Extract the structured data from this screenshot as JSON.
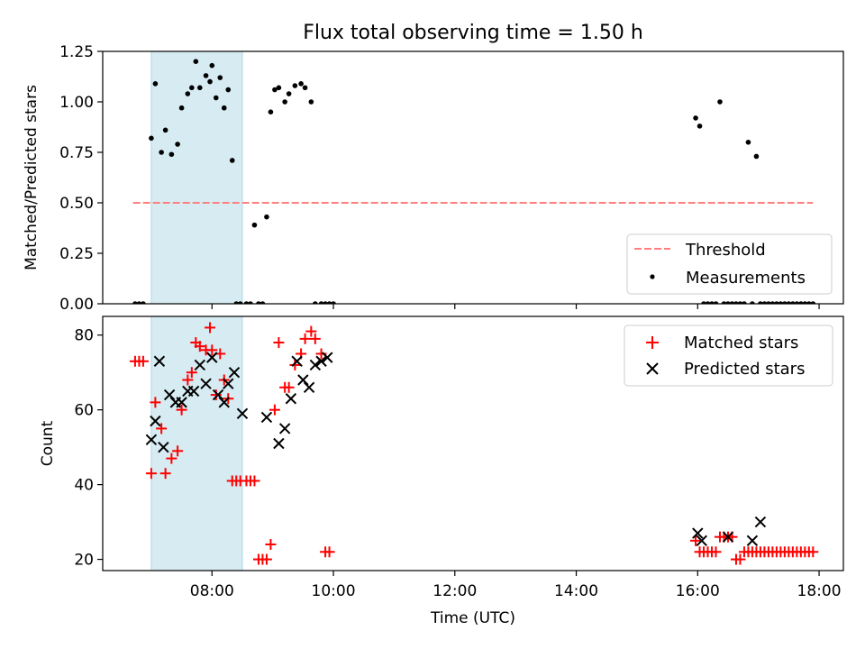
{
  "figure": {
    "title": "Flux total observing time = 1.50 h",
    "xlabel": "Time (UTC)"
  },
  "colors": {
    "band": "#add8e6",
    "threshold": "#ff7f7f",
    "measurement": "#000000",
    "matched": "#ff0000",
    "predicted": "#000000"
  },
  "chart_data": [
    {
      "type": "scatter",
      "title": "Flux total observing time = 1.50 h",
      "ylabel": "Matched/Predicted stars",
      "xlim": [
        "06:12",
        "18:24"
      ],
      "ylim": [
        0,
        1.25
      ],
      "yticks": [
        "0.00",
        "0.25",
        "0.50",
        "0.75",
        "1.00",
        "1.25"
      ],
      "shaded_interval": [
        "07:00",
        "08:30"
      ],
      "threshold": {
        "name": "Threshold",
        "y": 0.5,
        "x_range": [
          "06:42",
          "17:54"
        ]
      },
      "legend": {
        "placement": "lower-right",
        "entries": [
          "Threshold",
          "Measurements"
        ]
      },
      "series": [
        {
          "name": "Measurements",
          "marker": "dot",
          "x": [
            "06:44",
            "06:48",
            "06:52",
            "07:00",
            "07:04",
            "07:10",
            "07:14",
            "07:20",
            "07:26",
            "07:30",
            "07:36",
            "07:40",
            "07:44",
            "07:48",
            "07:54",
            "07:58",
            "08:00",
            "08:04",
            "08:08",
            "08:12",
            "08:16",
            "08:20",
            "08:24",
            "08:28",
            "08:34",
            "08:38",
            "08:42",
            "08:46",
            "08:50",
            "08:54",
            "08:58",
            "09:02",
            "09:06",
            "09:12",
            "09:16",
            "09:22",
            "09:28",
            "09:32",
            "09:38",
            "09:42",
            "09:48",
            "09:52",
            "09:56",
            "10:00",
            "15:58",
            "16:02",
            "16:06",
            "16:10",
            "16:14",
            "16:18",
            "16:22",
            "16:26",
            "16:30",
            "16:34",
            "16:38",
            "16:42",
            "16:46",
            "16:50",
            "16:54",
            "16:58",
            "17:02",
            "17:06",
            "17:10",
            "17:14",
            "17:18",
            "17:22",
            "17:26",
            "17:30",
            "17:34",
            "17:38",
            "17:42",
            "17:46",
            "17:50",
            "17:54"
          ],
          "y": [
            0,
            0,
            0,
            0.82,
            1.09,
            0.75,
            0.86,
            0.74,
            0.79,
            0.97,
            1.04,
            1.07,
            1.2,
            1.07,
            1.13,
            1.1,
            1.18,
            1.02,
            1.12,
            0.97,
            1.06,
            0.71,
            0,
            0,
            0,
            0,
            0.39,
            0,
            0,
            0.43,
            0.95,
            1.06,
            1.07,
            1.0,
            1.04,
            1.08,
            1.09,
            1.07,
            1.0,
            0,
            0,
            0,
            0,
            0,
            0.92,
            0.88,
            0,
            0,
            0,
            0,
            1.0,
            0,
            0,
            0,
            0,
            0,
            0,
            0.8,
            0,
            0.73,
            0,
            0,
            0,
            0,
            0,
            0,
            0,
            0,
            0,
            0,
            0,
            0,
            0,
            0
          ]
        }
      ]
    },
    {
      "type": "scatter",
      "ylabel": "Count",
      "xlim": [
        "06:12",
        "18:24"
      ],
      "ylim": [
        17,
        85
      ],
      "yticks": [
        "20",
        "40",
        "60",
        "80"
      ],
      "xticks": [
        "08:00",
        "10:00",
        "12:00",
        "14:00",
        "16:00",
        "18:00"
      ],
      "shaded_interval": [
        "07:00",
        "08:30"
      ],
      "legend": {
        "placement": "upper-right",
        "entries": [
          "Matched stars",
          "Predicted stars"
        ]
      },
      "series": [
        {
          "name": "Matched stars",
          "marker": "plus",
          "x": [
            "06:44",
            "06:48",
            "06:52",
            "07:00",
            "07:04",
            "07:10",
            "07:14",
            "07:20",
            "07:26",
            "07:30",
            "07:36",
            "07:40",
            "07:44",
            "07:48",
            "07:54",
            "07:58",
            "08:00",
            "08:04",
            "08:08",
            "08:12",
            "08:16",
            "08:20",
            "08:24",
            "08:28",
            "08:34",
            "08:38",
            "08:42",
            "08:46",
            "08:50",
            "08:54",
            "08:58",
            "09:02",
            "09:06",
            "09:12",
            "09:16",
            "09:22",
            "09:28",
            "09:32",
            "09:38",
            "09:42",
            "09:48",
            "09:52",
            "09:56",
            "15:58",
            "16:02",
            "16:06",
            "16:10",
            "16:14",
            "16:18",
            "16:22",
            "16:26",
            "16:30",
            "16:34",
            "16:38",
            "16:42",
            "16:46",
            "16:50",
            "16:54",
            "16:58",
            "17:02",
            "17:06",
            "17:10",
            "17:14",
            "17:18",
            "17:22",
            "17:26",
            "17:30",
            "17:34",
            "17:38",
            "17:42",
            "17:46",
            "17:50",
            "17:54"
          ],
          "y": [
            73,
            73,
            73,
            43,
            62,
            55,
            43,
            47,
            49,
            60,
            68,
            70,
            78,
            77,
            76,
            82,
            76,
            64,
            75,
            68,
            63,
            41,
            41,
            41,
            41,
            41,
            41,
            20,
            20,
            20,
            24,
            60,
            78,
            66,
            66,
            72,
            75,
            79,
            81,
            79,
            75,
            22,
            22,
            25,
            22,
            22,
            22,
            22,
            22,
            26,
            26,
            26,
            26,
            20,
            20,
            22,
            22,
            22,
            22,
            22,
            22,
            22,
            22,
            22,
            22,
            22,
            22,
            22,
            22,
            22,
            22,
            22,
            22
          ]
        },
        {
          "name": "Predicted stars",
          "marker": "x",
          "x": [
            "07:00",
            "07:04",
            "07:08",
            "07:12",
            "07:18",
            "07:24",
            "07:30",
            "07:36",
            "07:42",
            "07:48",
            "07:54",
            "08:00",
            "08:06",
            "08:12",
            "08:16",
            "08:22",
            "08:30",
            "08:54",
            "09:06",
            "09:12",
            "09:18",
            "09:24",
            "09:30",
            "09:36",
            "09:42",
            "09:48",
            "09:54",
            "16:00",
            "16:04",
            "16:30",
            "16:54",
            "17:02"
          ],
          "y": [
            52,
            57,
            73,
            50,
            64,
            62,
            62,
            65,
            65,
            72,
            67,
            74,
            64,
            62,
            67,
            70,
            59,
            58,
            51,
            55,
            63,
            73,
            68,
            66,
            72,
            73,
            74,
            27,
            25,
            26,
            25,
            30
          ]
        }
      ]
    }
  ]
}
